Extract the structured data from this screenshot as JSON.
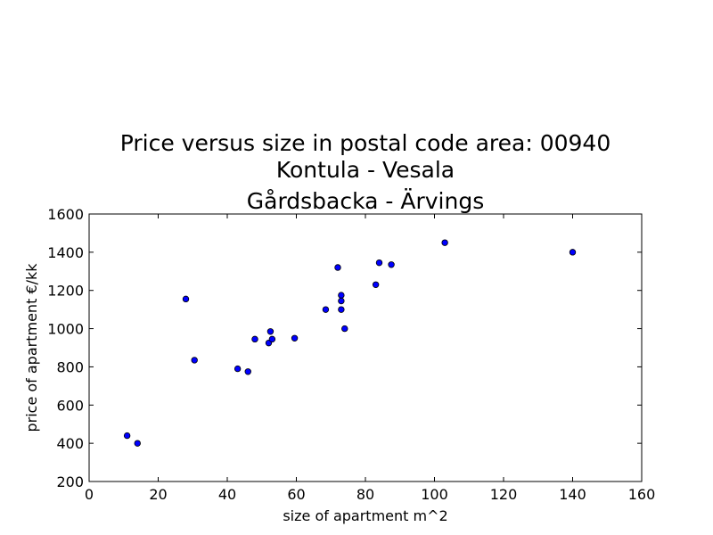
{
  "chart_data": {
    "type": "scatter",
    "title_lines": [
      "Price versus size in postal code area: 00940",
      "Kontula - Vesala",
      "Gårdsbacka - Ärvings"
    ],
    "xlabel": "size of apartment m^2",
    "ylabel": "price of apartment €/kk",
    "xlim": [
      0,
      160
    ],
    "ylim": [
      200,
      1600
    ],
    "xticks": [
      0,
      20,
      40,
      60,
      80,
      100,
      120,
      140,
      160
    ],
    "yticks": [
      200,
      400,
      600,
      800,
      1000,
      1200,
      1400,
      1600
    ],
    "grid": false,
    "marker_color": "#0000ff",
    "marker_edge_color": "#000000",
    "points": [
      {
        "x": 11,
        "y": 440
      },
      {
        "x": 14,
        "y": 400
      },
      {
        "x": 28,
        "y": 1155
      },
      {
        "x": 30.5,
        "y": 835
      },
      {
        "x": 43,
        "y": 790
      },
      {
        "x": 46,
        "y": 775
      },
      {
        "x": 48,
        "y": 945
      },
      {
        "x": 52,
        "y": 925
      },
      {
        "x": 52.5,
        "y": 985
      },
      {
        "x": 53,
        "y": 945
      },
      {
        "x": 59.5,
        "y": 950
      },
      {
        "x": 68.5,
        "y": 1100
      },
      {
        "x": 72,
        "y": 1320
      },
      {
        "x": 73,
        "y": 1175
      },
      {
        "x": 73,
        "y": 1145
      },
      {
        "x": 73,
        "y": 1100
      },
      {
        "x": 74,
        "y": 1000
      },
      {
        "x": 83,
        "y": 1230
      },
      {
        "x": 84,
        "y": 1345
      },
      {
        "x": 87.5,
        "y": 1335
      },
      {
        "x": 103,
        "y": 1450
      },
      {
        "x": 140,
        "y": 1400
      }
    ]
  }
}
